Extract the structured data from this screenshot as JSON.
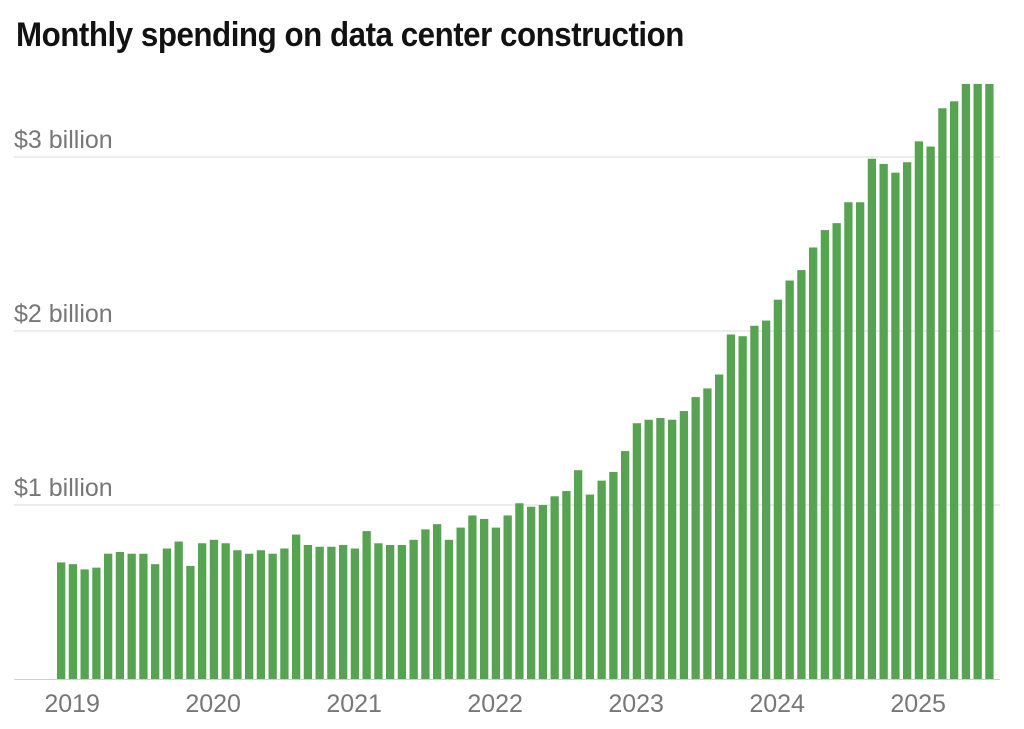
{
  "chart_data": {
    "type": "bar",
    "title": "Monthly spending on data center construction",
    "xlabel": "",
    "ylabel": "",
    "ylim": [
      0,
      3.45
    ],
    "y_unit": "billion USD",
    "y_ticks": [
      {
        "value": 1,
        "label": "$1 billion"
      },
      {
        "value": 2,
        "label": "$2 billion"
      },
      {
        "value": 3,
        "label": "$3 billion"
      }
    ],
    "x_ticks": [
      {
        "index": 0,
        "label": "2019"
      },
      {
        "index": 12,
        "label": "2020"
      },
      {
        "index": 24,
        "label": "2021"
      },
      {
        "index": 36,
        "label": "2022"
      },
      {
        "index": 48,
        "label": "2023"
      },
      {
        "index": 60,
        "label": "2024"
      },
      {
        "index": 72,
        "label": "2025"
      }
    ],
    "start_month": "2019-01",
    "values": [
      0.67,
      0.66,
      0.63,
      0.64,
      0.72,
      0.73,
      0.72,
      0.72,
      0.66,
      0.75,
      0.79,
      0.65,
      0.78,
      0.8,
      0.78,
      0.74,
      0.72,
      0.74,
      0.72,
      0.75,
      0.83,
      0.77,
      0.76,
      0.76,
      0.77,
      0.75,
      0.85,
      0.78,
      0.77,
      0.77,
      0.8,
      0.86,
      0.89,
      0.8,
      0.87,
      0.94,
      0.92,
      0.87,
      0.94,
      1.01,
      0.99,
      1.0,
      1.05,
      1.08,
      1.2,
      1.06,
      1.14,
      1.19,
      1.31,
      1.47,
      1.49,
      1.5,
      1.49,
      1.54,
      1.62,
      1.67,
      1.75,
      1.98,
      1.97,
      2.03,
      2.06,
      2.18,
      2.29,
      2.35,
      2.48,
      2.58,
      2.62,
      2.74,
      2.74,
      2.99,
      2.96,
      2.91,
      2.97,
      3.09,
      3.06,
      3.28,
      3.32,
      3.42,
      3.42,
      3.42
    ],
    "bar_color": "#56a351",
    "grid": true
  }
}
